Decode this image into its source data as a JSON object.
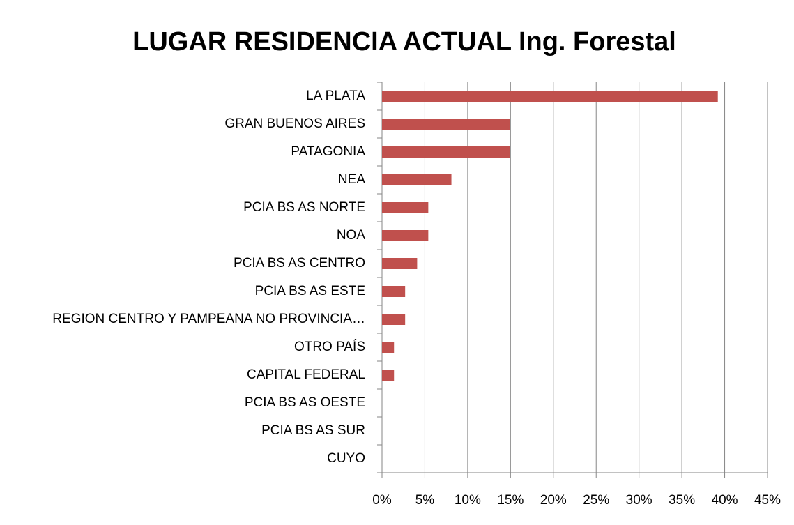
{
  "chart_data": {
    "type": "bar",
    "orientation": "horizontal",
    "title": "LUGAR RESIDENCIA ACTUAL Ing. Forestal",
    "categories": [
      "LA PLATA",
      "GRAN BUENOS AIRES",
      "PATAGONIA",
      "NEA",
      "PCIA BS AS NORTE",
      "NOA",
      "PCIA BS AS CENTRO",
      "PCIA BS AS ESTE",
      "REGION CENTRO Y PAMPEANA NO PROVINCIA…",
      "OTRO PAÍS",
      "CAPITAL FEDERAL",
      "PCIA BS AS OESTE",
      "PCIA BS AS SUR",
      "CUYO"
    ],
    "values": [
      39.2,
      14.9,
      14.9,
      8.1,
      5.4,
      5.4,
      4.1,
      2.7,
      2.7,
      1.4,
      1.4,
      0,
      0,
      0
    ],
    "color": "#c0504d",
    "xlim": [
      0,
      45
    ],
    "xticks": [
      {
        "value": 0,
        "label": "0%"
      },
      {
        "value": 5,
        "label": "5%"
      },
      {
        "value": 10,
        "label": "10%"
      },
      {
        "value": 15,
        "label": "15%"
      },
      {
        "value": 20,
        "label": "20%"
      },
      {
        "value": 25,
        "label": "25%"
      },
      {
        "value": 30,
        "label": "30%"
      },
      {
        "value": 35,
        "label": "35%"
      },
      {
        "value": 40,
        "label": "40%"
      },
      {
        "value": 45,
        "label": "45%"
      }
    ],
    "grid": true
  }
}
